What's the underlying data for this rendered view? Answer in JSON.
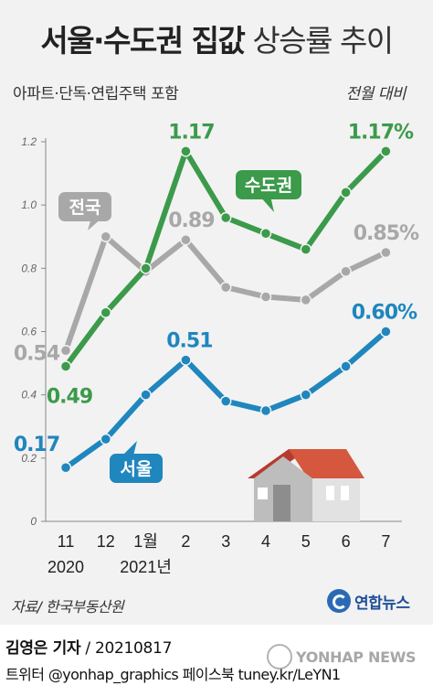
{
  "header": {
    "title_bold": "서울·수도권 집값",
    "title_light": "상승률 추이",
    "subtitle": "아파트·단독·연립주택 포함",
    "unit": "전월 대비"
  },
  "chart_data": {
    "type": "line",
    "categories": [
      "11",
      "12",
      "1월",
      "2",
      "3",
      "4",
      "5",
      "6",
      "7"
    ],
    "year_labels": [
      {
        "category_index": 0,
        "text": "2020"
      },
      {
        "category_index": 2,
        "text": "2021년"
      }
    ],
    "ylim": [
      0,
      1.2
    ],
    "yticks": [
      "0",
      "0.2",
      "0.4",
      "0.6",
      "0.8",
      "1.0",
      "1.2"
    ],
    "grid": false,
    "series": [
      {
        "name": "전국",
        "color": "#a8a8a8",
        "values": [
          0.54,
          0.9,
          0.79,
          0.89,
          0.74,
          0.71,
          0.7,
          0.79,
          0.85
        ],
        "point_labels": [
          {
            "index": 0,
            "text": "0.54"
          },
          {
            "index": 3,
            "text": "0.89"
          },
          {
            "index": 8,
            "text": "0.85%"
          }
        ]
      },
      {
        "name": "수도권",
        "color": "#3c9a4b",
        "values": [
          0.49,
          0.66,
          0.8,
          1.17,
          0.96,
          0.91,
          0.86,
          1.04,
          1.17
        ],
        "point_labels": [
          {
            "index": 0,
            "text": "0.49"
          },
          {
            "index": 3,
            "text": "1.17"
          },
          {
            "index": 8,
            "text": "1.17%"
          }
        ]
      },
      {
        "name": "서울",
        "color": "#1f86be",
        "values": [
          0.17,
          0.26,
          0.4,
          0.51,
          0.38,
          0.35,
          0.4,
          0.49,
          0.6
        ],
        "point_labels": [
          {
            "index": 0,
            "text": "0.17"
          },
          {
            "index": 3,
            "text": "0.51"
          },
          {
            "index": 8,
            "text": "0.60%"
          }
        ]
      }
    ]
  },
  "footer": {
    "source": "자료/ 한국부동산원",
    "logo": "연합뉴스",
    "reporter": "김영은 기자",
    "date": " / 20210817",
    "social": "트위터 @yonhap_graphics  페이스북 tuney.kr/LeYN1",
    "watermark": "YONHAP NEWS"
  }
}
